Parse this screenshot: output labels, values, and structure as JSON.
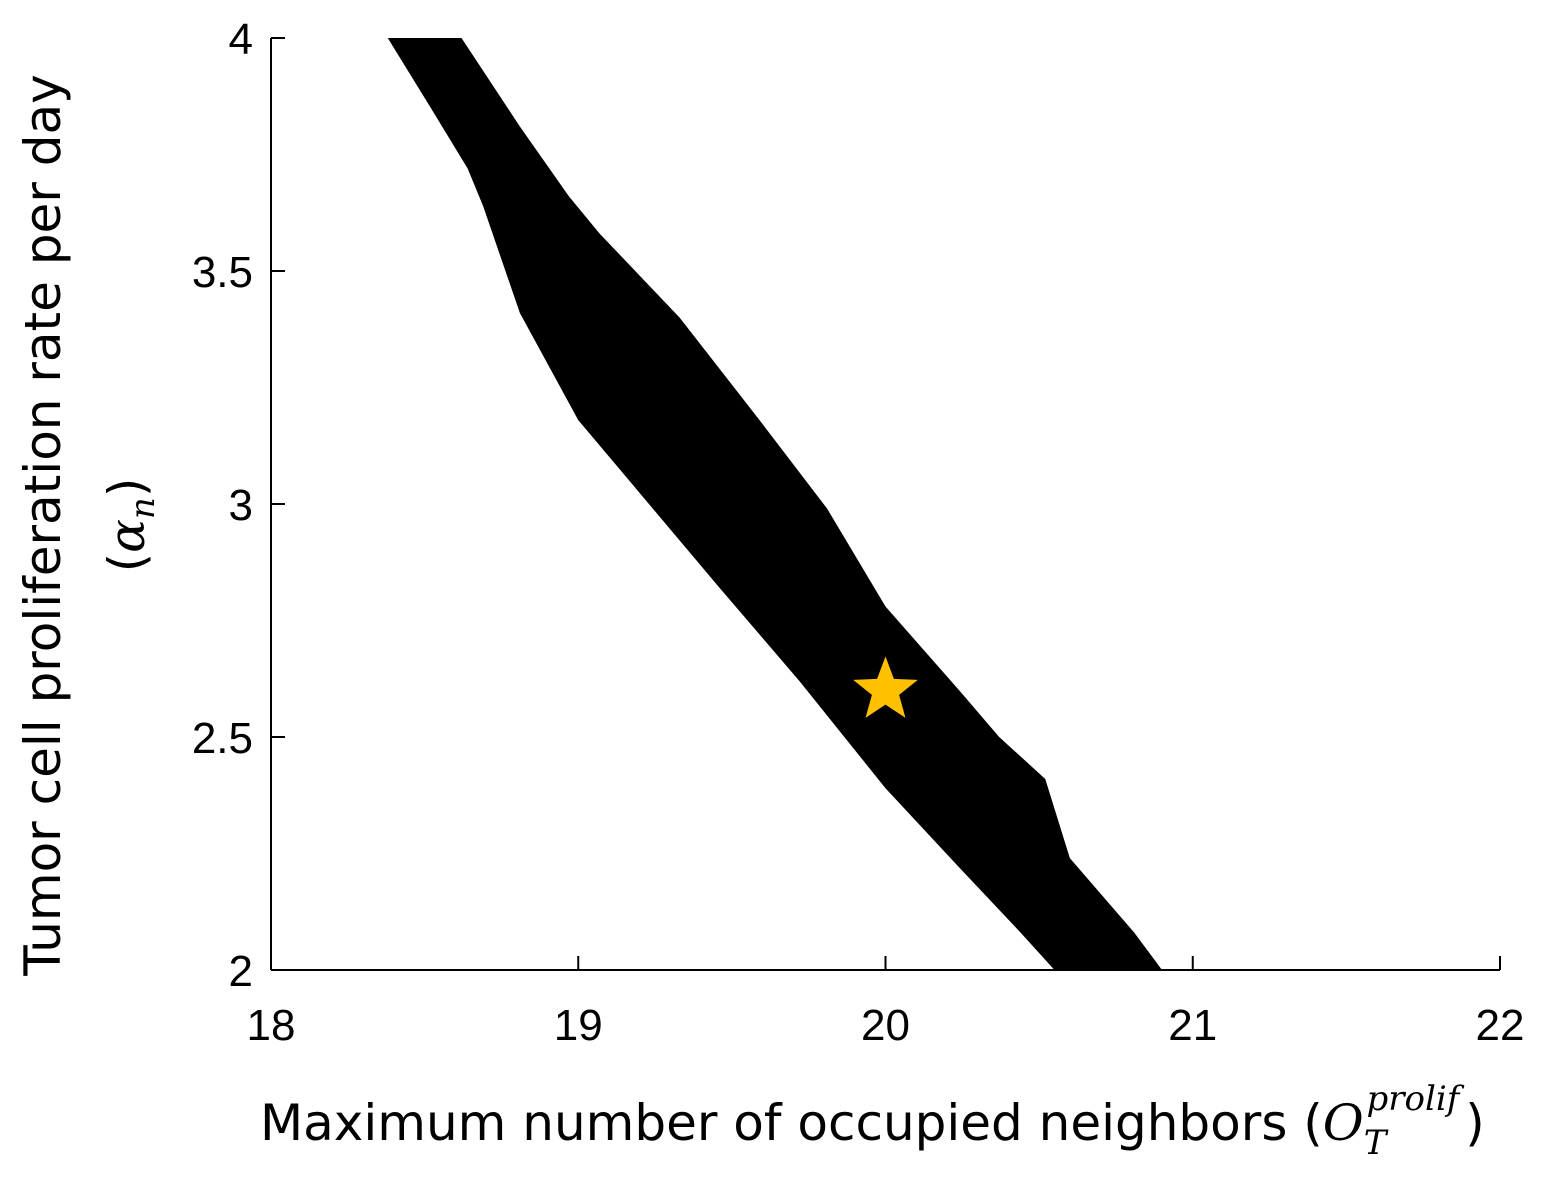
{
  "chart_data": {
    "type": "polygon",
    "xlabel": {
      "text": "Maximum number of occupied neighbors (",
      "symbol": "O",
      "subscript": "T",
      "superscript": "prolif",
      "close": ")"
    },
    "ylabel": {
      "text": "Tumor cell proliferation rate per day",
      "open": "(",
      "symbol": "α",
      "subscript": "n",
      "close": ")"
    },
    "xlim": [
      18,
      22
    ],
    "ylim": [
      2,
      4
    ],
    "xticks": [
      18,
      19,
      20,
      21,
      22
    ],
    "yticks": [
      2,
      2.5,
      3,
      3.5,
      4
    ],
    "series": [
      {
        "color": "#000000",
        "x": [
          18.38,
          18.52,
          18.64,
          18.69,
          18.81,
          19.0,
          19.23,
          19.46,
          19.72,
          20.0,
          20.24,
          20.44,
          20.55,
          20.9,
          20.81,
          20.6,
          20.52,
          20.37,
          20.24,
          20.0,
          19.81,
          19.59,
          19.33,
          19.07,
          18.97,
          18.81,
          18.62
        ],
        "y": [
          4.0,
          3.85,
          3.72,
          3.64,
          3.41,
          3.18,
          3.0,
          2.82,
          2.62,
          2.39,
          2.22,
          2.08,
          2.0,
          2.0,
          2.08,
          2.24,
          2.41,
          2.5,
          2.6,
          2.78,
          2.99,
          3.18,
          3.4,
          3.58,
          3.66,
          3.81,
          4.0
        ]
      }
    ],
    "markers": [
      {
        "x": 20,
        "y": 2.6,
        "color": "#ffc000",
        "shape": "star"
      }
    ]
  }
}
